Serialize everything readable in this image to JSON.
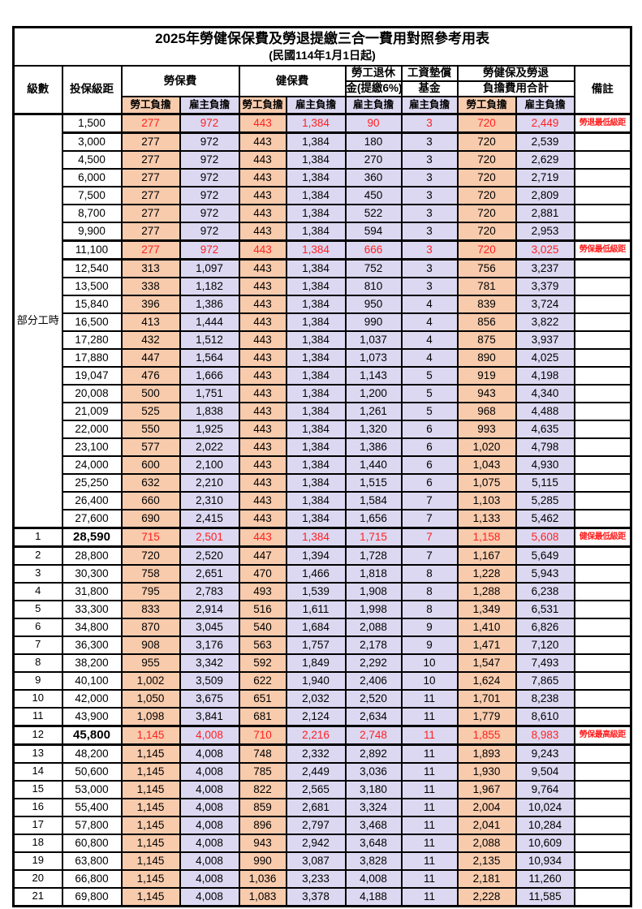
{
  "title": "2025年勞健保保費及勞退提繳三合一費用對照參考用表",
  "subtitle": "(民國114年1月1日起)",
  "colors": {
    "employee_col_bg": "#F8CBAD",
    "employer_col_bg": "#DCD8F1",
    "highlight_text": "#FF2020",
    "border": "#000000"
  },
  "header": {
    "level": "級數",
    "salary": "投保級距",
    "labor": "勞保費",
    "health": "健保費",
    "pension_line1": "勞工退休",
    "pension_line2": "金(提繳6%)",
    "wagefund_line1": "工資墊償",
    "wagefund_line2": "基金",
    "total_line1": "勞健保及勞退",
    "total_line2": "負擔費用合計",
    "note": "備註",
    "employee": "勞工負擔",
    "employer": "雇主負擔"
  },
  "part_time_label": "部分工時",
  "rows": [
    {
      "level": "",
      "salary": "1,500",
      "values": [
        "277",
        "972",
        "443",
        "1,384",
        "90",
        "3",
        "720",
        "2,449"
      ],
      "note": "勞退最低級距",
      "highlight": true,
      "bold_salary": false
    },
    {
      "level": "",
      "salary": "3,000",
      "values": [
        "277",
        "972",
        "443",
        "1,384",
        "180",
        "3",
        "720",
        "2,539"
      ],
      "note": "",
      "highlight": false,
      "bold_salary": false
    },
    {
      "level": "",
      "salary": "4,500",
      "values": [
        "277",
        "972",
        "443",
        "1,384",
        "270",
        "3",
        "720",
        "2,629"
      ],
      "note": "",
      "highlight": false,
      "bold_salary": false
    },
    {
      "level": "",
      "salary": "6,000",
      "values": [
        "277",
        "972",
        "443",
        "1,384",
        "360",
        "3",
        "720",
        "2,719"
      ],
      "note": "",
      "highlight": false,
      "bold_salary": false
    },
    {
      "level": "",
      "salary": "7,500",
      "values": [
        "277",
        "972",
        "443",
        "1,384",
        "450",
        "3",
        "720",
        "2,809"
      ],
      "note": "",
      "highlight": false,
      "bold_salary": false
    },
    {
      "level": "",
      "salary": "8,700",
      "values": [
        "277",
        "972",
        "443",
        "1,384",
        "522",
        "3",
        "720",
        "2,881"
      ],
      "note": "",
      "highlight": false,
      "bold_salary": false
    },
    {
      "level": "",
      "salary": "9,900",
      "values": [
        "277",
        "972",
        "443",
        "1,384",
        "594",
        "3",
        "720",
        "2,953"
      ],
      "note": "",
      "highlight": false,
      "bold_salary": false
    },
    {
      "level": "",
      "salary": "11,100",
      "values": [
        "277",
        "972",
        "443",
        "1,384",
        "666",
        "3",
        "720",
        "3,025"
      ],
      "note": "勞保最低級距",
      "highlight": true,
      "bold_salary": false
    },
    {
      "level": "",
      "salary": "12,540",
      "values": [
        "313",
        "1,097",
        "443",
        "1,384",
        "752",
        "3",
        "756",
        "3,237"
      ],
      "note": "",
      "highlight": false,
      "bold_salary": false
    },
    {
      "level": "",
      "salary": "13,500",
      "values": [
        "338",
        "1,182",
        "443",
        "1,384",
        "810",
        "3",
        "781",
        "3,379"
      ],
      "note": "",
      "highlight": false,
      "bold_salary": false
    },
    {
      "level": "",
      "salary": "15,840",
      "values": [
        "396",
        "1,386",
        "443",
        "1,384",
        "950",
        "4",
        "839",
        "3,724"
      ],
      "note": "",
      "highlight": false,
      "bold_salary": false
    },
    {
      "level": "",
      "salary": "16,500",
      "values": [
        "413",
        "1,444",
        "443",
        "1,384",
        "990",
        "4",
        "856",
        "3,822"
      ],
      "note": "",
      "highlight": false,
      "bold_salary": false
    },
    {
      "level": "",
      "salary": "17,280",
      "values": [
        "432",
        "1,512",
        "443",
        "1,384",
        "1,037",
        "4",
        "875",
        "3,937"
      ],
      "note": "",
      "highlight": false,
      "bold_salary": false
    },
    {
      "level": "",
      "salary": "17,880",
      "values": [
        "447",
        "1,564",
        "443",
        "1,384",
        "1,073",
        "4",
        "890",
        "4,025"
      ],
      "note": "",
      "highlight": false,
      "bold_salary": false
    },
    {
      "level": "",
      "salary": "19,047",
      "values": [
        "476",
        "1,666",
        "443",
        "1,384",
        "1,143",
        "5",
        "919",
        "4,198"
      ],
      "note": "",
      "highlight": false,
      "bold_salary": false
    },
    {
      "level": "",
      "salary": "20,008",
      "values": [
        "500",
        "1,751",
        "443",
        "1,384",
        "1,200",
        "5",
        "943",
        "4,340"
      ],
      "note": "",
      "highlight": false,
      "bold_salary": false
    },
    {
      "level": "",
      "salary": "21,009",
      "values": [
        "525",
        "1,838",
        "443",
        "1,384",
        "1,261",
        "5",
        "968",
        "4,488"
      ],
      "note": "",
      "highlight": false,
      "bold_salary": false
    },
    {
      "level": "",
      "salary": "22,000",
      "values": [
        "550",
        "1,925",
        "443",
        "1,384",
        "1,320",
        "6",
        "993",
        "4,635"
      ],
      "note": "",
      "highlight": false,
      "bold_salary": false
    },
    {
      "level": "",
      "salary": "23,100",
      "values": [
        "577",
        "2,022",
        "443",
        "1,384",
        "1,386",
        "6",
        "1,020",
        "4,798"
      ],
      "note": "",
      "highlight": false,
      "bold_salary": false
    },
    {
      "level": "",
      "salary": "24,000",
      "values": [
        "600",
        "2,100",
        "443",
        "1,384",
        "1,440",
        "6",
        "1,043",
        "4,930"
      ],
      "note": "",
      "highlight": false,
      "bold_salary": false
    },
    {
      "level": "",
      "salary": "25,250",
      "values": [
        "632",
        "2,210",
        "443",
        "1,384",
        "1,515",
        "6",
        "1,075",
        "5,115"
      ],
      "note": "",
      "highlight": false,
      "bold_salary": false
    },
    {
      "level": "",
      "salary": "26,400",
      "values": [
        "660",
        "2,310",
        "443",
        "1,384",
        "1,584",
        "7",
        "1,103",
        "5,285"
      ],
      "note": "",
      "highlight": false,
      "bold_salary": false
    },
    {
      "level": "",
      "salary": "27,600",
      "values": [
        "690",
        "2,415",
        "443",
        "1,384",
        "1,656",
        "7",
        "1,133",
        "5,462"
      ],
      "note": "",
      "highlight": false,
      "bold_salary": false
    },
    {
      "level": "1",
      "salary": "28,590",
      "values": [
        "715",
        "2,501",
        "443",
        "1,384",
        "1,715",
        "7",
        "1,158",
        "5,608"
      ],
      "note": "健保最低級距",
      "highlight": true,
      "bold_salary": true
    },
    {
      "level": "2",
      "salary": "28,800",
      "values": [
        "720",
        "2,520",
        "447",
        "1,394",
        "1,728",
        "7",
        "1,167",
        "5,649"
      ],
      "note": "",
      "highlight": false,
      "bold_salary": false
    },
    {
      "level": "3",
      "salary": "30,300",
      "values": [
        "758",
        "2,651",
        "470",
        "1,466",
        "1,818",
        "8",
        "1,228",
        "5,943"
      ],
      "note": "",
      "highlight": false,
      "bold_salary": false
    },
    {
      "level": "4",
      "salary": "31,800",
      "values": [
        "795",
        "2,783",
        "493",
        "1,539",
        "1,908",
        "8",
        "1,288",
        "6,238"
      ],
      "note": "",
      "highlight": false,
      "bold_salary": false
    },
    {
      "level": "5",
      "salary": "33,300",
      "values": [
        "833",
        "2,914",
        "516",
        "1,611",
        "1,998",
        "8",
        "1,349",
        "6,531"
      ],
      "note": "",
      "highlight": false,
      "bold_salary": false
    },
    {
      "level": "6",
      "salary": "34,800",
      "values": [
        "870",
        "3,045",
        "540",
        "1,684",
        "2,088",
        "9",
        "1,410",
        "6,826"
      ],
      "note": "",
      "highlight": false,
      "bold_salary": false
    },
    {
      "level": "7",
      "salary": "36,300",
      "values": [
        "908",
        "3,176",
        "563",
        "1,757",
        "2,178",
        "9",
        "1,471",
        "7,120"
      ],
      "note": "",
      "highlight": false,
      "bold_salary": false
    },
    {
      "level": "8",
      "salary": "38,200",
      "values": [
        "955",
        "3,342",
        "592",
        "1,849",
        "2,292",
        "10",
        "1,547",
        "7,493"
      ],
      "note": "",
      "highlight": false,
      "bold_salary": false
    },
    {
      "level": "9",
      "salary": "40,100",
      "values": [
        "1,002",
        "3,509",
        "622",
        "1,940",
        "2,406",
        "10",
        "1,624",
        "7,865"
      ],
      "note": "",
      "highlight": false,
      "bold_salary": false
    },
    {
      "level": "10",
      "salary": "42,000",
      "values": [
        "1,050",
        "3,675",
        "651",
        "2,032",
        "2,520",
        "11",
        "1,701",
        "8,238"
      ],
      "note": "",
      "highlight": false,
      "bold_salary": false
    },
    {
      "level": "11",
      "salary": "43,900",
      "values": [
        "1,098",
        "3,841",
        "681",
        "2,124",
        "2,634",
        "11",
        "1,779",
        "8,610"
      ],
      "note": "",
      "highlight": false,
      "bold_salary": false
    },
    {
      "level": "12",
      "salary": "45,800",
      "values": [
        "1,145",
        "4,008",
        "710",
        "2,216",
        "2,748",
        "11",
        "1,855",
        "8,983"
      ],
      "note": "勞保最高級距",
      "highlight": true,
      "bold_salary": true
    },
    {
      "level": "13",
      "salary": "48,200",
      "values": [
        "1,145",
        "4,008",
        "748",
        "2,332",
        "2,892",
        "11",
        "1,893",
        "9,243"
      ],
      "note": "",
      "highlight": false,
      "bold_salary": false
    },
    {
      "level": "14",
      "salary": "50,600",
      "values": [
        "1,145",
        "4,008",
        "785",
        "2,449",
        "3,036",
        "11",
        "1,930",
        "9,504"
      ],
      "note": "",
      "highlight": false,
      "bold_salary": false
    },
    {
      "level": "15",
      "salary": "53,000",
      "values": [
        "1,145",
        "4,008",
        "822",
        "2,565",
        "3,180",
        "11",
        "1,967",
        "9,764"
      ],
      "note": "",
      "highlight": false,
      "bold_salary": false
    },
    {
      "level": "16",
      "salary": "55,400",
      "values": [
        "1,145",
        "4,008",
        "859",
        "2,681",
        "3,324",
        "11",
        "2,004",
        "10,024"
      ],
      "note": "",
      "highlight": false,
      "bold_salary": false
    },
    {
      "level": "17",
      "salary": "57,800",
      "values": [
        "1,145",
        "4,008",
        "896",
        "2,797",
        "3,468",
        "11",
        "2,041",
        "10,284"
      ],
      "note": "",
      "highlight": false,
      "bold_salary": false
    },
    {
      "level": "18",
      "salary": "60,800",
      "values": [
        "1,145",
        "4,008",
        "943",
        "2,942",
        "3,648",
        "11",
        "2,088",
        "10,609"
      ],
      "note": "",
      "highlight": false,
      "bold_salary": false
    },
    {
      "level": "19",
      "salary": "63,800",
      "values": [
        "1,145",
        "4,008",
        "990",
        "3,087",
        "3,828",
        "11",
        "2,135",
        "10,934"
      ],
      "note": "",
      "highlight": false,
      "bold_salary": false
    },
    {
      "level": "20",
      "salary": "66,800",
      "values": [
        "1,145",
        "4,008",
        "1,036",
        "3,233",
        "4,008",
        "11",
        "2,181",
        "11,260"
      ],
      "note": "",
      "highlight": false,
      "bold_salary": false
    },
    {
      "level": "21",
      "salary": "69,800",
      "values": [
        "1,145",
        "4,008",
        "1,083",
        "3,378",
        "4,188",
        "11",
        "2,228",
        "11,585"
      ],
      "note": "",
      "highlight": false,
      "bold_salary": false
    }
  ]
}
